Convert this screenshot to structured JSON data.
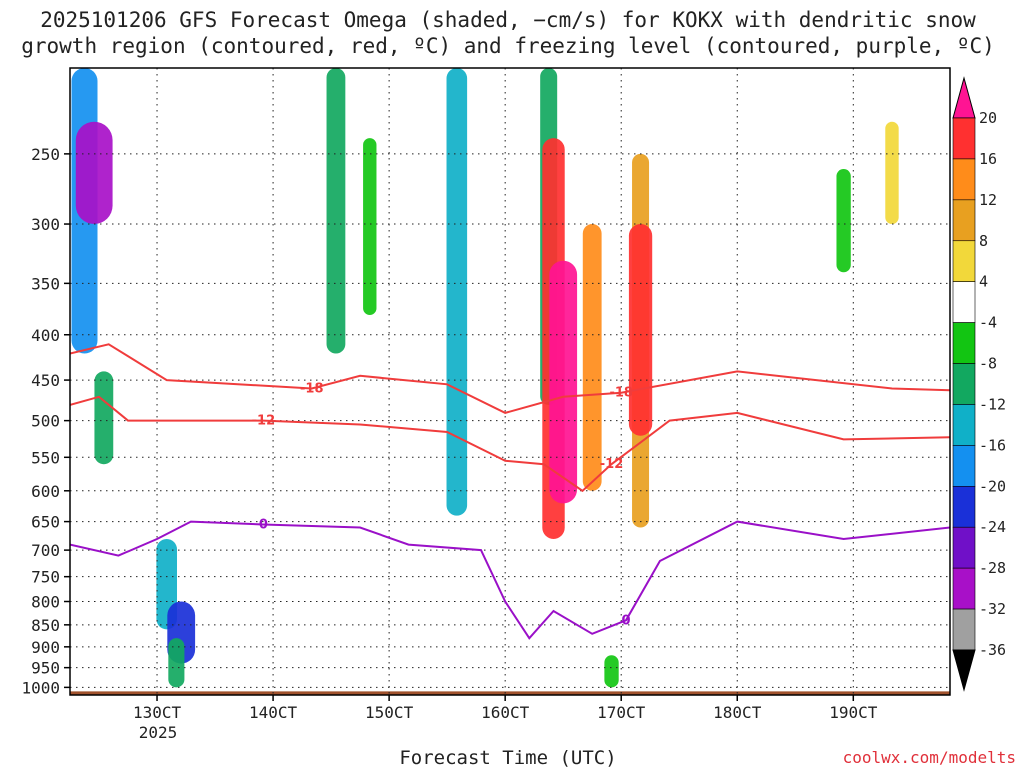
{
  "chart_data": {
    "type": "heatmap",
    "title": [
      "2025101206 GFS Forecast Omega (shaded, −cm/s) for KOKX with dendritic snow",
      "growth region (contoured, red, ºC) and freezing level (contoured, purple, ºC)"
    ],
    "xlabel": "Forecast Time (UTC)",
    "year_label": "2025",
    "credit": "coolwx.com/modelts",
    "x_ticks": [
      {
        "label": "130CT",
        "hour": 18
      },
      {
        "label": "140CT",
        "hour": 42
      },
      {
        "label": "150CT",
        "hour": 66
      },
      {
        "label": "160CT",
        "hour": 90
      },
      {
        "label": "170CT",
        "hour": 114
      },
      {
        "label": "180CT",
        "hour": 138
      },
      {
        "label": "190CT",
        "hour": 162
      }
    ],
    "xlim": [
      0,
      182
    ],
    "y_ticks": [
      250,
      300,
      350,
      400,
      450,
      500,
      550,
      600,
      650,
      700,
      750,
      800,
      850,
      900,
      950,
      1000
    ],
    "ylim": [
      200,
      1020
    ],
    "colorbar": {
      "levels": [
        20,
        16,
        12,
        8,
        4,
        -4,
        -8,
        -12,
        -16,
        -20,
        -24,
        -28,
        -32,
        -36
      ],
      "colors": [
        "#ff1493",
        "#ff3030",
        "#ff8c1a",
        "#e8a020",
        "#f2d83a",
        "#ffffff",
        "#12c512",
        "#12a860",
        "#10b0c8",
        "#1490f0",
        "#1a30d8",
        "#7010c8",
        "#a810c8",
        "#a0a0a0",
        "#000000"
      ]
    },
    "shading": [
      {
        "h": 3,
        "p0": 200,
        "p1": 420,
        "v": -20
      },
      {
        "h": 5,
        "p0": 230,
        "p1": 300,
        "v": -32
      },
      {
        "h": 7,
        "p0": 440,
        "p1": 560,
        "v": -12
      },
      {
        "h": 20,
        "p0": 680,
        "p1": 860,
        "v": -14
      },
      {
        "h": 23,
        "p0": 800,
        "p1": 940,
        "v": -22
      },
      {
        "h": 22,
        "p0": 880,
        "p1": 1000,
        "v": -9
      },
      {
        "h": 55,
        "p0": 200,
        "p1": 420,
        "v": -12
      },
      {
        "h": 62,
        "p0": 240,
        "p1": 380,
        "v": -6
      },
      {
        "h": 80,
        "p0": 200,
        "p1": 640,
        "v": -14
      },
      {
        "h": 99,
        "p0": 200,
        "p1": 480,
        "v": -10
      },
      {
        "h": 100,
        "p0": 240,
        "p1": 680,
        "v": 16
      },
      {
        "h": 102,
        "p0": 330,
        "p1": 620,
        "v": 22
      },
      {
        "h": 108,
        "p0": 300,
        "p1": 600,
        "v": 12
      },
      {
        "h": 118,
        "p0": 250,
        "p1": 660,
        "v": 10
      },
      {
        "h": 118,
        "p0": 300,
        "p1": 520,
        "v": 17
      },
      {
        "h": 112,
        "p0": 920,
        "p1": 1000,
        "v": -7
      },
      {
        "h": 160,
        "p0": 260,
        "p1": 340,
        "v": -7
      },
      {
        "h": 170,
        "p0": 230,
        "p1": 300,
        "v": 6
      }
    ],
    "contours": {
      "dgz": [
        {
          "label": "-18",
          "points": [
            [
              0,
              420
            ],
            [
              8,
              410
            ],
            [
              20,
              450
            ],
            [
              50,
              460
            ],
            [
              60,
              445
            ],
            [
              78,
              455
            ],
            [
              90,
              490
            ],
            [
              102,
              470
            ],
            [
              114,
              465
            ],
            [
              138,
              440
            ],
            [
              170,
              460
            ],
            [
              182,
              462
            ]
          ]
        },
        {
          "label": "-12",
          "points": [
            [
              0,
              480
            ],
            [
              6,
              470
            ],
            [
              12,
              500
            ],
            [
              40,
              500
            ],
            [
              60,
              505
            ],
            [
              78,
              515
            ],
            [
              90,
              555
            ],
            [
              98,
              560
            ],
            [
              106,
              600
            ],
            [
              112,
              560
            ],
            [
              124,
              500
            ],
            [
              138,
              490
            ],
            [
              160,
              525
            ],
            [
              182,
              522
            ]
          ]
        }
      ],
      "freezing_level": {
        "label": "0",
        "points": [
          [
            0,
            690
          ],
          [
            10,
            710
          ],
          [
            18,
            680
          ],
          [
            25,
            650
          ],
          [
            40,
            655
          ],
          [
            60,
            660
          ],
          [
            70,
            690
          ],
          [
            85,
            700
          ],
          [
            90,
            800
          ],
          [
            95,
            880
          ],
          [
            100,
            820
          ],
          [
            108,
            870
          ],
          [
            115,
            840
          ],
          [
            122,
            720
          ],
          [
            138,
            650
          ],
          [
            160,
            680
          ],
          [
            182,
            660
          ]
        ]
      }
    }
  }
}
